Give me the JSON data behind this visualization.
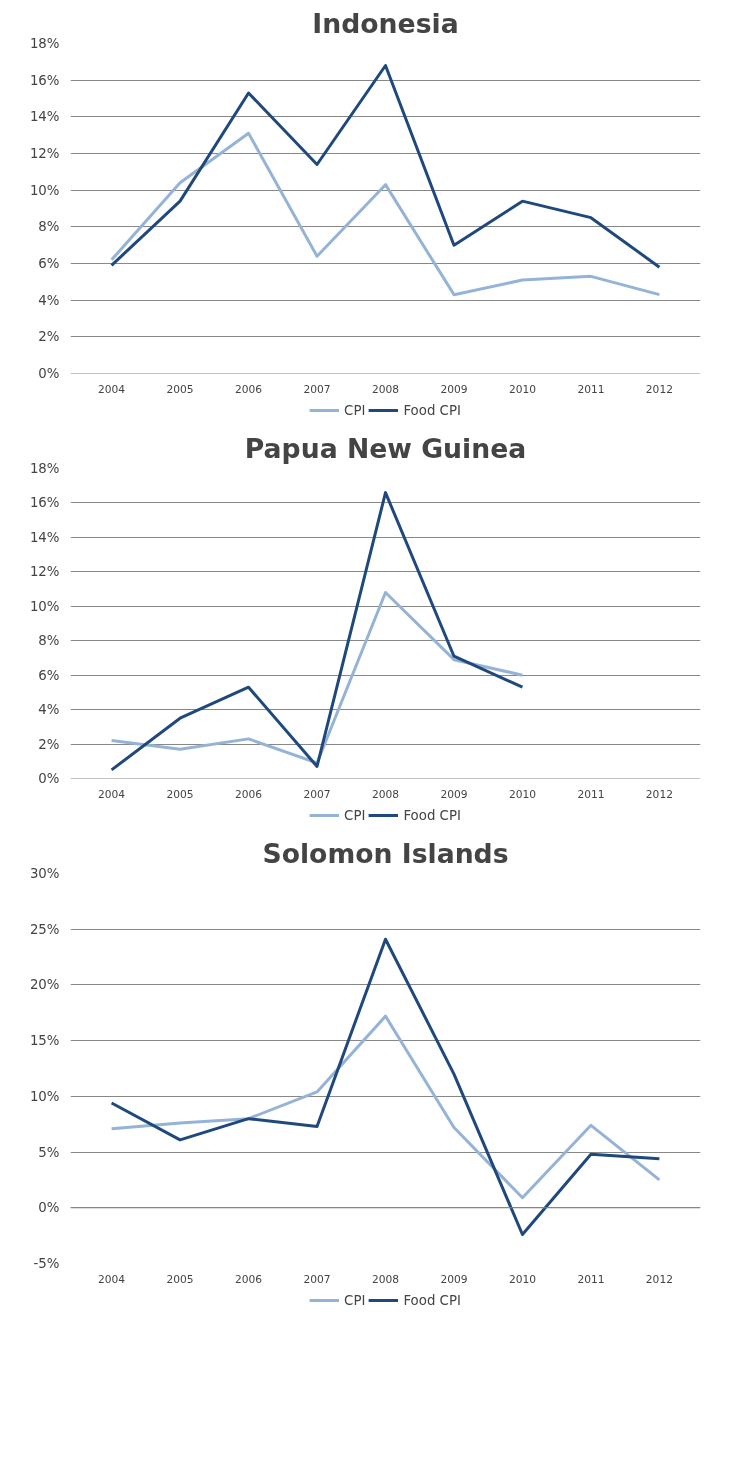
{
  "chart_data": [
    {
      "type": "line",
      "title": "Indonesia",
      "categories": [
        "2004",
        "2005",
        "2006",
        "2007",
        "2008",
        "2009",
        "2010",
        "2011",
        "2012"
      ],
      "ylim": [
        0,
        18
      ],
      "yticks": [
        {
          "value": 0,
          "label": "0%"
        },
        {
          "value": 2,
          "label": "2%"
        },
        {
          "value": 4,
          "label": "4%"
        },
        {
          "value": 6,
          "label": "6%"
        },
        {
          "value": 8,
          "label": "8%"
        },
        {
          "value": 10,
          "label": "10%"
        },
        {
          "value": 12,
          "label": "12%"
        },
        {
          "value": 14,
          "label": "14%"
        },
        {
          "value": 16,
          "label": "16%"
        },
        {
          "value": 18,
          "label": "18%"
        }
      ],
      "grid": "y",
      "legend": "bottom",
      "series": [
        {
          "name": "CPI",
          "color": "#95b3d7",
          "values": [
            6.2,
            10.4,
            13.1,
            6.4,
            10.3,
            4.3,
            5.1,
            5.3,
            4.3
          ]
        },
        {
          "name": "Food CPI",
          "color": "#1f497d",
          "values": [
            5.9,
            9.4,
            15.3,
            11.4,
            16.8,
            7.0,
            9.4,
            8.5,
            5.8
          ]
        }
      ]
    },
    {
      "type": "line",
      "title": "Papua New Guinea",
      "categories": [
        "2004",
        "2005",
        "2006",
        "2007",
        "2008",
        "2009",
        "2010",
        "2011",
        "2012"
      ],
      "ylim": [
        0,
        18
      ],
      "yticks": [
        {
          "value": 0,
          "label": "0%"
        },
        {
          "value": 2,
          "label": "2%"
        },
        {
          "value": 4,
          "label": "4%"
        },
        {
          "value": 6,
          "label": "6%"
        },
        {
          "value": 8,
          "label": "8%"
        },
        {
          "value": 10,
          "label": "10%"
        },
        {
          "value": 12,
          "label": "12%"
        },
        {
          "value": 14,
          "label": "14%"
        },
        {
          "value": 16,
          "label": "16%"
        },
        {
          "value": 18,
          "label": "18%"
        }
      ],
      "grid": "y",
      "legend": "bottom",
      "series": [
        {
          "name": "CPI",
          "color": "#95b3d7",
          "values": [
            2.2,
            1.7,
            2.3,
            0.9,
            10.8,
            6.9,
            6.0,
            null,
            null
          ]
        },
        {
          "name": "Food CPI",
          "color": "#1f497d",
          "values": [
            0.5,
            3.5,
            5.3,
            0.7,
            16.6,
            7.1,
            5.3,
            null,
            null
          ]
        }
      ]
    },
    {
      "type": "line",
      "title": "Solomon Islands",
      "categories": [
        "2004",
        "2005",
        "2006",
        "2007",
        "2008",
        "2009",
        "2010",
        "2011",
        "2012"
      ],
      "ylim": [
        -5,
        30
      ],
      "yticks": [
        {
          "value": -5,
          "label": "-5%"
        },
        {
          "value": 0,
          "label": "0%"
        },
        {
          "value": 5,
          "label": "5%"
        },
        {
          "value": 10,
          "label": "10%"
        },
        {
          "value": 15,
          "label": "15%"
        },
        {
          "value": 20,
          "label": "20%"
        },
        {
          "value": 25,
          "label": "25%"
        },
        {
          "value": 30,
          "label": "30%"
        }
      ],
      "grid": "y",
      "legend": "bottom",
      "series": [
        {
          "name": "CPI",
          "color": "#95b3d7",
          "values": [
            7.1,
            7.6,
            8.0,
            10.4,
            17.2,
            7.2,
            0.9,
            7.4,
            2.5
          ]
        },
        {
          "name": "Food CPI",
          "color": "#1f497d",
          "values": [
            9.4,
            6.1,
            8.0,
            7.3,
            24.1,
            12.0,
            -2.4,
            4.8,
            4.4
          ]
        }
      ]
    }
  ]
}
